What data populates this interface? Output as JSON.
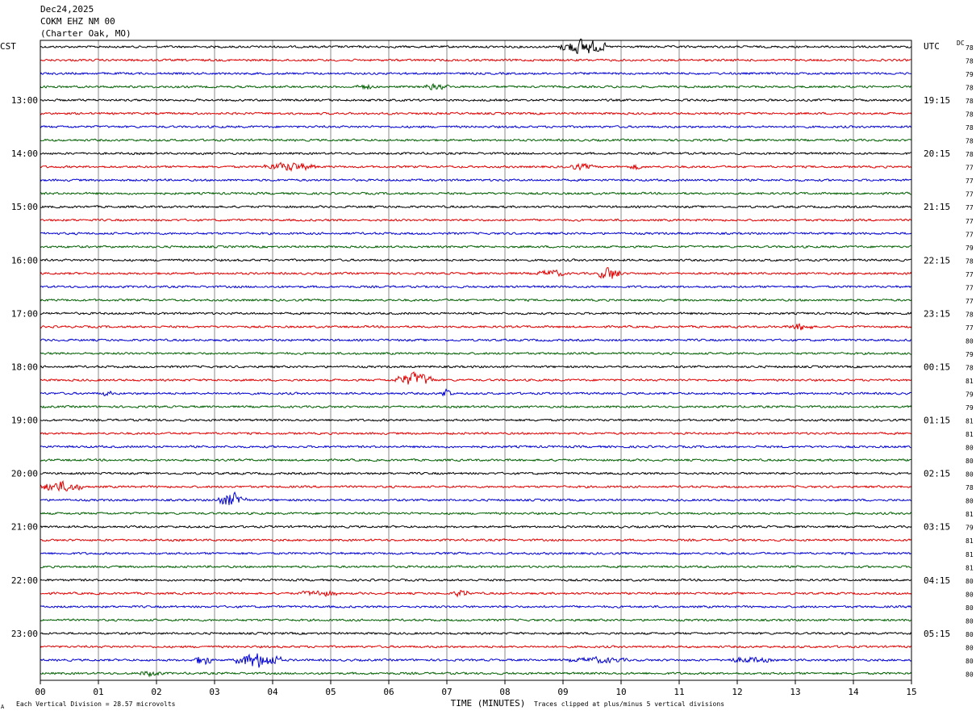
{
  "header": {
    "date": "Dec24,2025",
    "station": "COKM EHZ NM 00",
    "location": "(Charter Oak, MO)"
  },
  "chart_data": {
    "type": "line",
    "title": "",
    "xlabel": "TIME (MINUTES)",
    "x_ticks": [
      "00",
      "01",
      "02",
      "03",
      "04",
      "05",
      "06",
      "07",
      "08",
      "09",
      "10",
      "11",
      "12",
      "13",
      "14",
      "15"
    ],
    "xlim": [
      0,
      15
    ],
    "left_timezone": "CST",
    "right_timezone": "UTC",
    "dc_label": "DC",
    "left_hour_labels": [
      "13:00",
      "14:00",
      "15:00",
      "16:00",
      "17:00",
      "18:00",
      "19:00",
      "20:00",
      "21:00",
      "22:00",
      "23:00"
    ],
    "right_hour_labels": [
      "19:15",
      "20:15",
      "21:15",
      "22:15",
      "23:15",
      "00:15",
      "01:15",
      "02:15",
      "03:15",
      "04:15",
      "05:15"
    ],
    "trace_colors": [
      "#000000",
      "#e00000",
      "#0000d0",
      "#006000"
    ],
    "dc_offsets": [
      "78",
      "78",
      "79",
      "78",
      "78",
      "78",
      "78",
      "78",
      "78",
      "77",
      "77",
      "77",
      "77",
      "77",
      "77",
      "79",
      "78",
      "77",
      "77",
      "77",
      "78",
      "77",
      "80",
      "79",
      "78",
      "81",
      "79",
      "79",
      "81",
      "81",
      "80",
      "80",
      "80",
      "78",
      "80",
      "81",
      "79",
      "81",
      "81",
      "81",
      "80",
      "80",
      "80",
      "80",
      "80",
      "80",
      "80",
      "80"
    ],
    "events": [
      {
        "trace": 0,
        "minute": 9.35,
        "duration": 0.8,
        "amp": 10
      },
      {
        "trace": 3,
        "minute": 5.6,
        "duration": 0.3,
        "amp": 3
      },
      {
        "trace": 3,
        "minute": 6.8,
        "duration": 0.5,
        "amp": 3
      },
      {
        "trace": 9,
        "minute": 4.3,
        "duration": 0.9,
        "amp": 5
      },
      {
        "trace": 9,
        "minute": 9.3,
        "duration": 0.5,
        "amp": 3
      },
      {
        "trace": 9,
        "minute": 10.25,
        "duration": 0.2,
        "amp": 3
      },
      {
        "trace": 17,
        "minute": 8.8,
        "duration": 0.5,
        "amp": 4
      },
      {
        "trace": 17,
        "minute": 9.8,
        "duration": 0.4,
        "amp": 9
      },
      {
        "trace": 21,
        "minute": 13.1,
        "duration": 0.4,
        "amp": 4
      },
      {
        "trace": 25,
        "minute": 6.45,
        "duration": 0.7,
        "amp": 9
      },
      {
        "trace": 26,
        "minute": 7.0,
        "duration": 0.2,
        "amp": 6
      },
      {
        "trace": 26,
        "minute": 1.15,
        "duration": 0.2,
        "amp": 3
      },
      {
        "trace": 33,
        "minute": 0.35,
        "duration": 0.8,
        "amp": 6
      },
      {
        "trace": 34,
        "minute": 3.3,
        "duration": 0.5,
        "amp": 9
      },
      {
        "trace": 41,
        "minute": 4.8,
        "duration": 0.7,
        "amp": 3
      },
      {
        "trace": 41,
        "minute": 7.25,
        "duration": 0.3,
        "amp": 4
      },
      {
        "trace": 46,
        "minute": 2.8,
        "duration": 0.3,
        "amp": 7
      },
      {
        "trace": 46,
        "minute": 3.75,
        "duration": 0.8,
        "amp": 10
      },
      {
        "trace": 46,
        "minute": 9.6,
        "duration": 1.0,
        "amp": 3
      },
      {
        "trace": 46,
        "minute": 12.2,
        "duration": 0.8,
        "amp": 3
      },
      {
        "trace": 47,
        "minute": 1.9,
        "duration": 0.4,
        "amp": 3
      }
    ]
  },
  "footer": {
    "scale_note": "Each Vertical Division =   28.57 microvolts",
    "clip_note": "Traces clipped at plus/minus 5 vertical divisions",
    "corner_mark": "A"
  }
}
